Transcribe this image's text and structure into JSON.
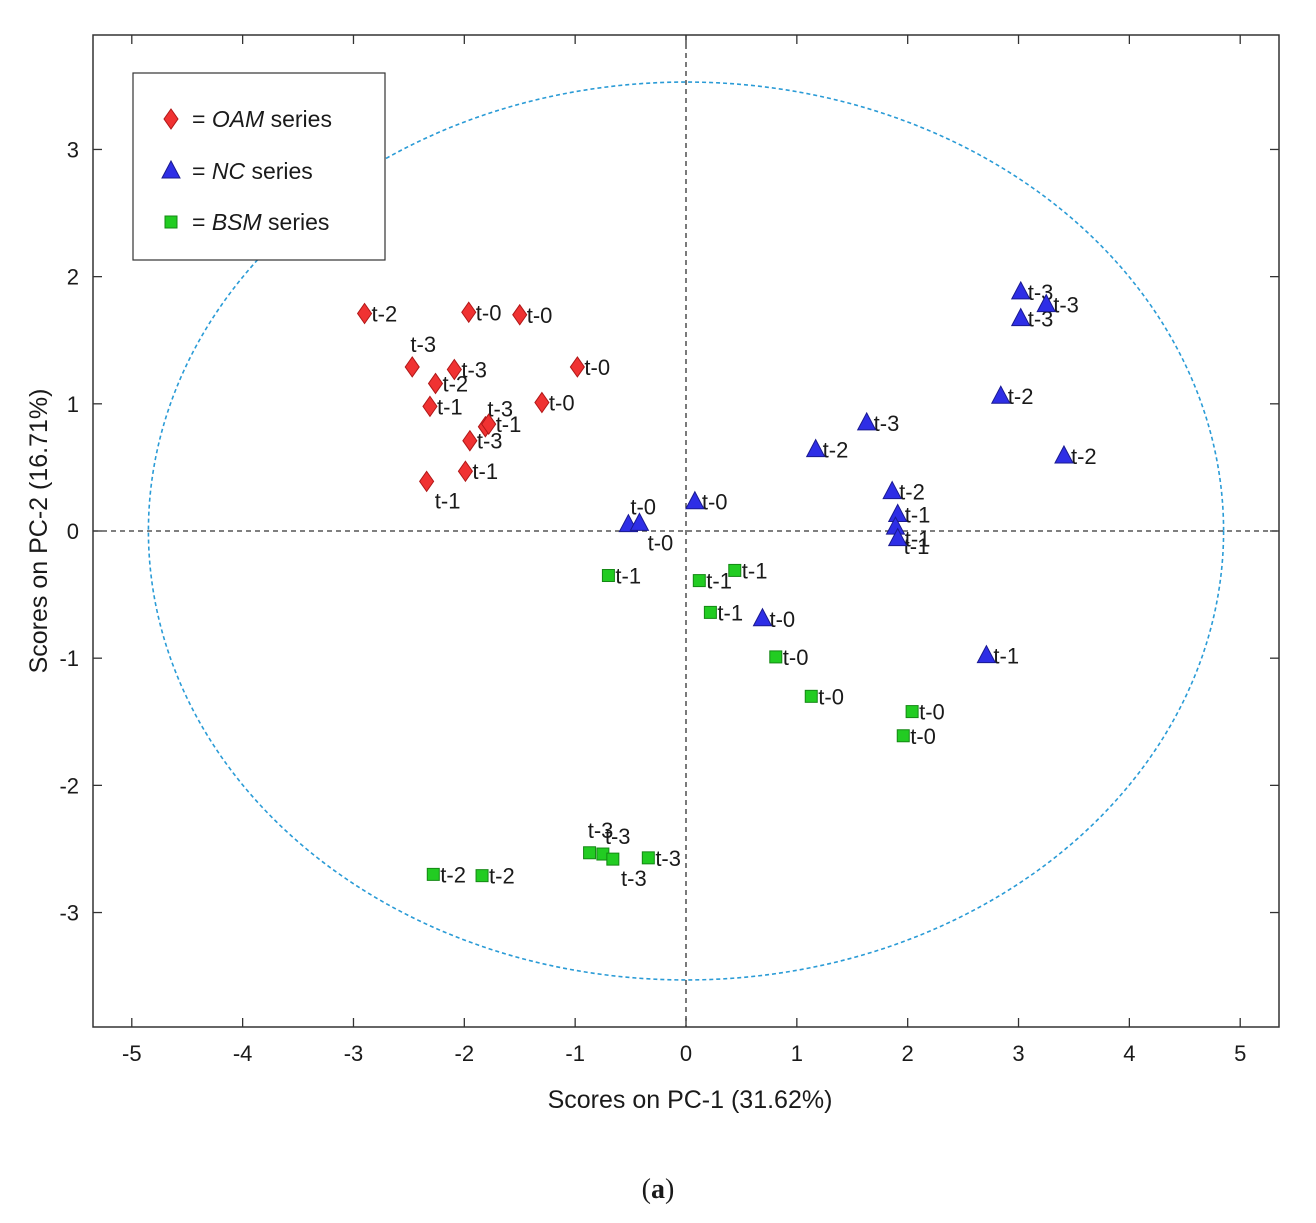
{
  "chart_data": {
    "type": "scatter",
    "title": "",
    "xlabel": "Scores on PC-1 (31.62%)",
    "ylabel": "Scores on PC-2 (16.71%)",
    "xlim": [
      -5.35,
      5.35
    ],
    "ylim": [
      -3.9,
      3.9
    ],
    "xticks": [
      -5,
      -4,
      -3,
      -2,
      -1,
      0,
      1,
      2,
      3,
      4,
      5
    ],
    "yticks": [
      -3,
      -2,
      -1,
      0,
      1,
      2,
      3
    ],
    "grid": false,
    "reference_lines": {
      "x": 0,
      "y": 0,
      "style": "dashed"
    },
    "confidence_ellipse": {
      "cx": 0,
      "cy": 0,
      "rx": 4.85,
      "ry": 3.53,
      "color": "#2a9bd6"
    },
    "legend": {
      "position": "top-left",
      "entries": [
        {
          "series": 0,
          "prefix": "= ",
          "italic": "OAM",
          "suffix": " series"
        },
        {
          "series": 1,
          "prefix": "= ",
          "italic": "NC",
          "suffix": " series"
        },
        {
          "series": 2,
          "prefix": "= ",
          "italic": "BSM",
          "suffix": " series"
        }
      ]
    },
    "series": [
      {
        "name": "OAM series",
        "marker": "diamond",
        "color": "#f03232",
        "points": [
          {
            "x": -2.9,
            "y": 1.71,
            "label": "t-2",
            "pos": "right"
          },
          {
            "x": -1.96,
            "y": 1.72,
            "label": "t-0",
            "pos": "right"
          },
          {
            "x": -1.5,
            "y": 1.7,
            "label": "t-0",
            "pos": "right"
          },
          {
            "x": -0.98,
            "y": 1.29,
            "label": "t-0",
            "pos": "right"
          },
          {
            "x": -2.47,
            "y": 1.29,
            "label": "t-3",
            "pos": "above"
          },
          {
            "x": -2.09,
            "y": 1.27,
            "label": "t-3",
            "pos": "right"
          },
          {
            "x": -2.26,
            "y": 1.16,
            "label": "t-2",
            "pos": "right"
          },
          {
            "x": -2.31,
            "y": 0.98,
            "label": "t-1",
            "pos": "right"
          },
          {
            "x": -1.3,
            "y": 1.01,
            "label": "t-0",
            "pos": "right"
          },
          {
            "x": -1.81,
            "y": 0.82,
            "label": "t-3",
            "pos": "above-right"
          },
          {
            "x": -1.78,
            "y": 0.84,
            "label": "t-1",
            "pos": "right"
          },
          {
            "x": -1.95,
            "y": 0.71,
            "label": "t-3",
            "pos": "right"
          },
          {
            "x": -1.99,
            "y": 0.47,
            "label": "t-1",
            "pos": "right"
          },
          {
            "x": -2.34,
            "y": 0.39,
            "label": "t-1",
            "pos": "below"
          }
        ]
      },
      {
        "name": "NC series",
        "marker": "triangle",
        "color": "#2e2ee6",
        "points": [
          {
            "x": 3.02,
            "y": 1.88,
            "label": "t-3",
            "pos": "right"
          },
          {
            "x": 3.25,
            "y": 1.78,
            "label": "t-3",
            "pos": "right"
          },
          {
            "x": 3.02,
            "y": 1.67,
            "label": "t-3",
            "pos": "right"
          },
          {
            "x": 2.84,
            "y": 1.06,
            "label": "t-2",
            "pos": "right"
          },
          {
            "x": 3.41,
            "y": 0.59,
            "label": "t-2",
            "pos": "right"
          },
          {
            "x": 1.63,
            "y": 0.85,
            "label": "t-3",
            "pos": "right"
          },
          {
            "x": 1.17,
            "y": 0.64,
            "label": "t-2",
            "pos": "right"
          },
          {
            "x": 1.86,
            "y": 0.31,
            "label": "t-2",
            "pos": "right"
          },
          {
            "x": 1.91,
            "y": 0.13,
            "label": "t-1",
            "pos": "right"
          },
          {
            "x": 1.89,
            "y": 0.03,
            "label": "t-1",
            "pos": "below"
          },
          {
            "x": 1.91,
            "y": -0.06,
            "label": "t-1",
            "pos": "right"
          },
          {
            "x": 0.08,
            "y": 0.23,
            "label": "t-0",
            "pos": "right"
          },
          {
            "x": -0.52,
            "y": 0.05,
            "label": "t-0",
            "pos": "above-right"
          },
          {
            "x": -0.42,
            "y": 0.06,
            "label": "t-0",
            "pos": "below"
          },
          {
            "x": 0.69,
            "y": -0.69,
            "label": "t-0",
            "pos": "right"
          },
          {
            "x": 2.71,
            "y": -0.98,
            "label": "t-1",
            "pos": "right"
          }
        ]
      },
      {
        "name": "BSM series",
        "marker": "square",
        "color": "#22cc22",
        "points": [
          {
            "x": -0.7,
            "y": -0.35,
            "label": "t-1",
            "pos": "right"
          },
          {
            "x": 0.12,
            "y": -0.39,
            "label": "t-1",
            "pos": "right"
          },
          {
            "x": 0.44,
            "y": -0.31,
            "label": "t-1",
            "pos": "right"
          },
          {
            "x": 0.22,
            "y": -0.64,
            "label": "t-1",
            "pos": "right"
          },
          {
            "x": 0.81,
            "y": -0.99,
            "label": "t-0",
            "pos": "right"
          },
          {
            "x": 1.13,
            "y": -1.3,
            "label": "t-0",
            "pos": "right"
          },
          {
            "x": 2.04,
            "y": -1.42,
            "label": "t-0",
            "pos": "right"
          },
          {
            "x": 1.96,
            "y": -1.61,
            "label": "t-0",
            "pos": "right"
          },
          {
            "x": -0.87,
            "y": -2.53,
            "label": "t-3",
            "pos": "above"
          },
          {
            "x": -0.75,
            "y": -2.54,
            "label": "t-3",
            "pos": "above-right"
          },
          {
            "x": -0.66,
            "y": -2.58,
            "label": "t-3",
            "pos": "below"
          },
          {
            "x": -0.34,
            "y": -2.57,
            "label": "t-3",
            "pos": "right"
          },
          {
            "x": -2.28,
            "y": -2.7,
            "label": "t-2",
            "pos": "right"
          },
          {
            "x": -1.84,
            "y": -2.71,
            "label": "t-2",
            "pos": "right"
          }
        ]
      }
    ]
  },
  "caption": {
    "open": "(",
    "letter": "a",
    "close": ")"
  }
}
